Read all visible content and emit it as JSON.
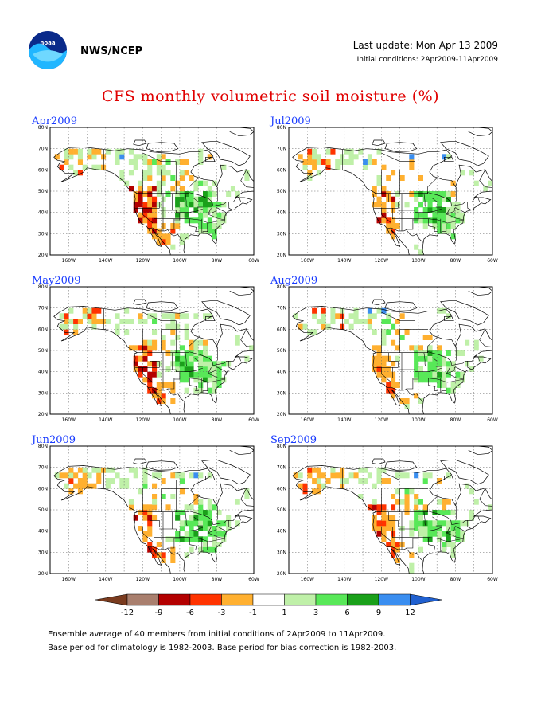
{
  "header": {
    "agency": "NWS/NCEP",
    "last_update": "Last update: Mon Apr 13 2009",
    "initial_conditions": "Initial conditions: 2Apr2009-11Apr2009"
  },
  "title": "CFS monthly volumetric soil moisture (%)",
  "map_axes": {
    "latitudes": [
      "20N",
      "30N",
      "40N",
      "50N",
      "60N",
      "70N",
      "80N"
    ],
    "longitudes": [
      "160W",
      "140W",
      "120W",
      "100W",
      "80W",
      "60W"
    ]
  },
  "panels": [
    {
      "title": "Apr2009",
      "col": 0,
      "row": 0,
      "wetness": 1.0
    },
    {
      "title": "Jul2009",
      "col": 1,
      "row": 0,
      "wetness": 0.45
    },
    {
      "title": "May2009",
      "col": 0,
      "row": 1,
      "wetness": 0.85
    },
    {
      "title": "Aug2009",
      "col": 1,
      "row": 1,
      "wetness": 0.5
    },
    {
      "title": "Jun2009",
      "col": 0,
      "row": 2,
      "wetness": 0.7
    },
    {
      "title": "Sep2009",
      "col": 1,
      "row": 2,
      "wetness": 0.6
    }
  ],
  "colorbar": {
    "colors": [
      "#7a3b1e",
      "#a97f6e",
      "#b30000",
      "#ff3300",
      "#ffb030",
      "#ffffff",
      "#bff0a8",
      "#58e858",
      "#1aa01a",
      "#3a8ef0",
      "#2060d0"
    ],
    "labels": [
      "-12",
      "-9",
      "-6",
      "-3",
      "-1",
      "1",
      "3",
      "6",
      "9",
      "12"
    ]
  },
  "footnotes": [
    "Ensemble average of 40 members from initial conditions of 2Apr2009 to 11Apr2009.",
    "Base period for climatology is 1982-2003. Base period for bias correction is 1982-2003."
  ]
}
